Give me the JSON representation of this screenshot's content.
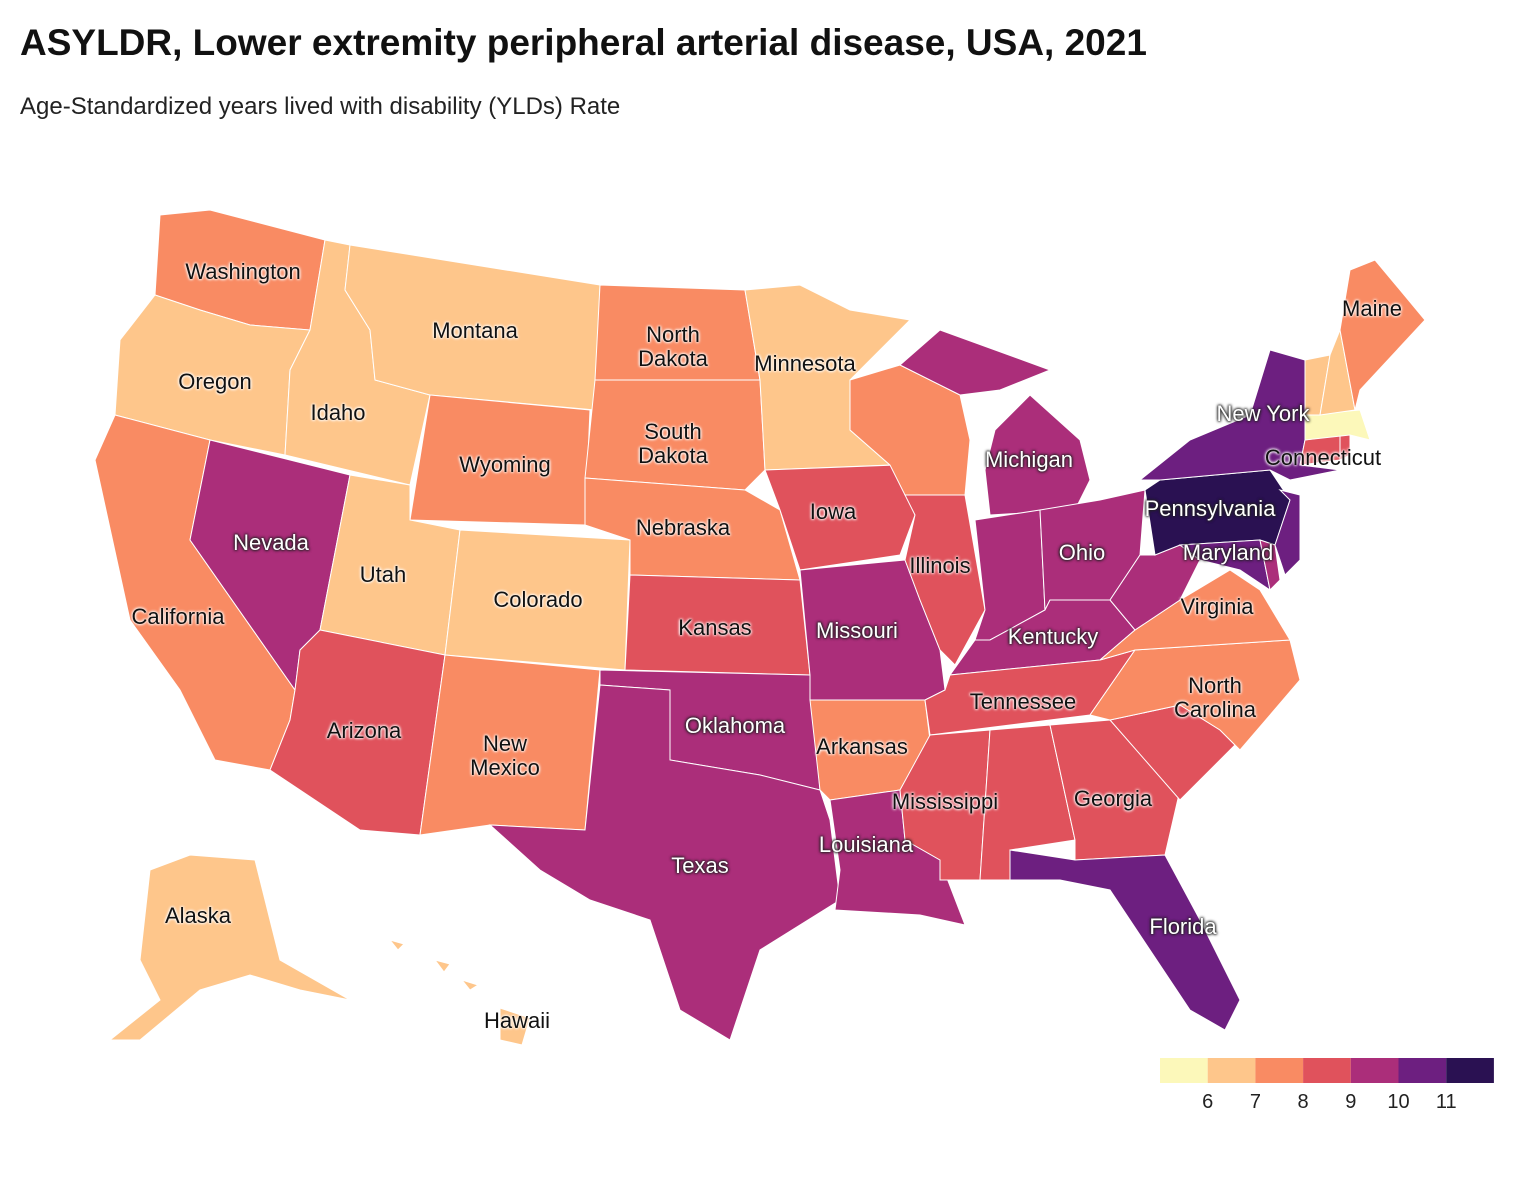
{
  "chart_data": {
    "type": "choropleth",
    "title": "ASYLDR, Lower extremity peripheral arterial disease, USA, 2021",
    "subtitle": "Age-Standardized years lived with disability (YLDs) Rate",
    "states": [
      {
        "name": "Washington",
        "value": 7.6
      },
      {
        "name": "Oregon",
        "value": 6.6
      },
      {
        "name": "California",
        "value": 7.6
      },
      {
        "name": "Nevada",
        "value": 9.5
      },
      {
        "name": "Idaho",
        "value": 6.6
      },
      {
        "name": "Montana",
        "value": 6.6
      },
      {
        "name": "Wyoming",
        "value": 7.6
      },
      {
        "name": "Utah",
        "value": 6.6
      },
      {
        "name": "Colorado",
        "value": 6.6
      },
      {
        "name": "Arizona",
        "value": 8.5
      },
      {
        "name": "New Mexico",
        "value": 7.6
      },
      {
        "name": "North Dakota",
        "value": 7.6
      },
      {
        "name": "South Dakota",
        "value": 7.6
      },
      {
        "name": "Nebraska",
        "value": 7.6
      },
      {
        "name": "Kansas",
        "value": 8.5
      },
      {
        "name": "Oklahoma",
        "value": 9.5
      },
      {
        "name": "Texas",
        "value": 9.5
      },
      {
        "name": "Minnesota",
        "value": 6.6
      },
      {
        "name": "Iowa",
        "value": 8.5
      },
      {
        "name": "Missouri",
        "value": 9.5
      },
      {
        "name": "Arkansas",
        "value": 7.6
      },
      {
        "name": "Louisiana",
        "value": 9.5
      },
      {
        "name": null,
        "value": 7.6
      },
      {
        "name": "Illinois",
        "value": 8.5
      },
      {
        "name": "Michigan",
        "value": 9.5
      },
      {
        "name": null,
        "value": 9.5
      },
      {
        "name": "Ohio",
        "value": 9.5
      },
      {
        "name": "Kentucky",
        "value": 9.5
      },
      {
        "name": "Tennessee",
        "value": 8.5
      },
      {
        "name": "Mississippi",
        "value": 8.5
      },
      {
        "name": null,
        "value": 8.5
      },
      {
        "name": "Georgia",
        "value": 8.5
      },
      {
        "name": "Florida",
        "value": 10.4
      },
      {
        "name": null,
        "value": 8.5
      },
      {
        "name": "North Carolina",
        "value": 7.6
      },
      {
        "name": "Virginia",
        "value": 7.6
      },
      {
        "name": null,
        "value": 9.5
      },
      {
        "name": "Pennsylvania",
        "value": 11.3
      },
      {
        "name": "New York",
        "value": 10.4
      },
      {
        "name": "Maryland",
        "value": 10.4
      },
      {
        "name": null,
        "value": 9.5
      },
      {
        "name": null,
        "value": 10.4
      },
      {
        "name": "Connecticut",
        "value": 8.5
      },
      {
        "name": null,
        "value": 8.5
      },
      {
        "name": null,
        "value": 5.8
      },
      {
        "name": null,
        "value": 6.6
      },
      {
        "name": null,
        "value": 6.6
      },
      {
        "name": "Maine",
        "value": 7.6
      },
      {
        "name": "Alaska",
        "value": 6.6
      },
      {
        "name": "Hawaii",
        "value": 6.6
      }
    ],
    "legend": {
      "ticks": [
        6,
        7,
        8,
        9,
        10,
        11
      ],
      "colors": [
        "#fcf8ba",
        "#fec68b",
        "#f98b63",
        "#e0525c",
        "#ab2e7a",
        "#6d1f80",
        "#2a1152"
      ]
    }
  }
}
